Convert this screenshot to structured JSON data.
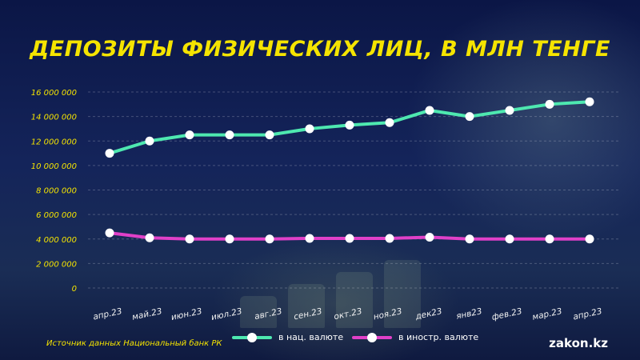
{
  "title": "ДЕПОЗИТЫ ФИЗИЧЕСКИХ ЛИЦ, В МЛН ТЕНГЕ",
  "source": "Источник данных Национальный банк РК",
  "brand": "zakon.kz",
  "colors": {
    "title": "#f5e400",
    "national": "#4ee8b0",
    "foreign": "#e040c8",
    "background": "#0f1c4a"
  },
  "legend": [
    {
      "label": "в нац. валюте",
      "color": "#4ee8b0"
    },
    {
      "label": "в иностр. валюте",
      "color": "#e040c8"
    }
  ],
  "chart_data": {
    "type": "line",
    "title": "ДЕПОЗИТЫ ФИЗИЧЕСКИХ ЛИЦ, В МЛН ТЕНГЕ",
    "xlabel": "",
    "ylabel": "",
    "categories": [
      "апр.23",
      "май.23",
      "июн.23",
      "июл.23",
      "авг.23",
      "сен.23",
      "окт.23",
      "ноя.23",
      "дек23",
      "янв23",
      "фев.23",
      "мар.23",
      "апр.23"
    ],
    "yticks": [
      "0",
      "2 000 000",
      "4 000 000",
      "6 000 000",
      "8 000 000",
      "10 000 000",
      "12 000 000",
      "14 000 000",
      "16 000 000"
    ],
    "ylim": [
      0,
      16000000
    ],
    "grid": true,
    "legend_position": "bottom",
    "series": [
      {
        "name": "в нац. валюте",
        "values": [
          11000000,
          12000000,
          12500000,
          12500000,
          12500000,
          13000000,
          13300000,
          13500000,
          14500000,
          14000000,
          14500000,
          15000000,
          15200000
        ]
      },
      {
        "name": "в иностр. валюте",
        "values": [
          4500000,
          4100000,
          4000000,
          4000000,
          4000000,
          4050000,
          4050000,
          4050000,
          4150000,
          4000000,
          4000000,
          4000000,
          4000000
        ]
      }
    ]
  }
}
